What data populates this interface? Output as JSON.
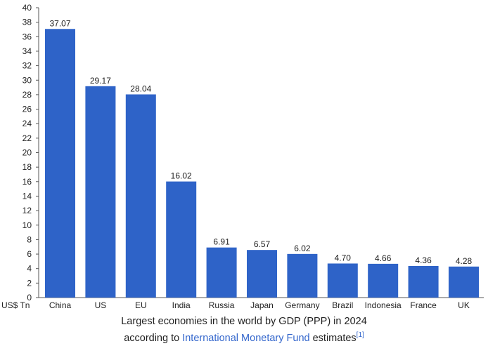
{
  "chart_data": {
    "type": "bar",
    "categories": [
      "China",
      "US",
      "EU",
      "India",
      "Russia",
      "Japan",
      "Germany",
      "Brazil",
      "Indonesia",
      "France",
      "UK"
    ],
    "values": [
      37.07,
      29.17,
      28.04,
      16.02,
      6.91,
      6.57,
      6.02,
      4.7,
      4.66,
      4.36,
      4.28
    ],
    "value_labels": [
      "37.07",
      "29.17",
      "28.04",
      "16.02",
      "6.91",
      "6.57",
      "6.02",
      "4.70",
      "4.66",
      "4.36",
      "4.28"
    ],
    "ylabel": "US$ Tn",
    "ylim": [
      0,
      40
    ],
    "ytick_step": 2,
    "grid": false,
    "bar_color": "#2e63c8"
  },
  "caption": {
    "line1": "Largest economies in the world by GDP (PPP) in 2024",
    "line2_prefix": "according to ",
    "line2_link": "International Monetary Fund",
    "line2_suffix": " estimates",
    "footnote": "[1]"
  }
}
